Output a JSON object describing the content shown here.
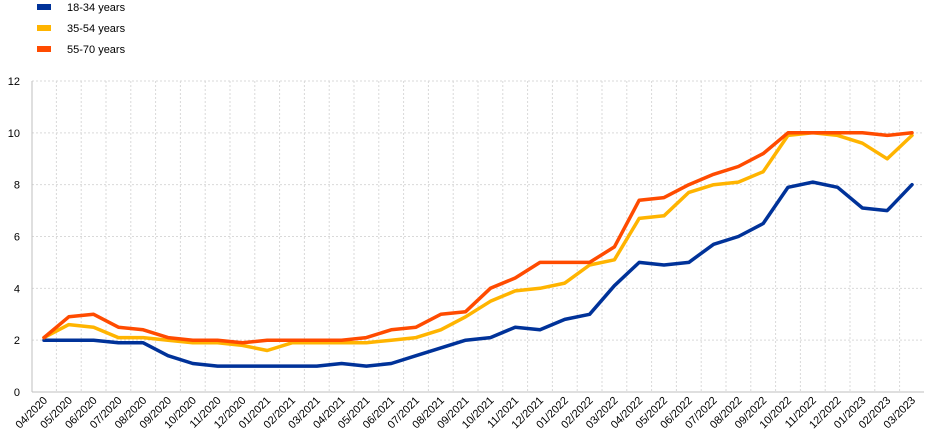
{
  "chart_data": {
    "type": "line",
    "categories": [
      "04/2020",
      "05/2020",
      "06/2020",
      "07/2020",
      "08/2020",
      "09/2020",
      "10/2020",
      "11/2020",
      "12/2020",
      "01/2021",
      "02/2021",
      "03/2021",
      "04/2021",
      "05/2021",
      "06/2021",
      "07/2021",
      "08/2021",
      "09/2021",
      "10/2021",
      "11/2021",
      "12/2021",
      "01/2022",
      "02/2022",
      "03/2022",
      "04/2022",
      "05/2022",
      "06/2022",
      "07/2022",
      "08/2022",
      "09/2022",
      "10/2022",
      "11/2022",
      "12/2022",
      "01/2023",
      "02/2023",
      "03/2023"
    ],
    "series": [
      {
        "name": "18-34 years",
        "color": "#003299",
        "values": [
          2.0,
          2.0,
          2.0,
          1.9,
          1.9,
          1.4,
          1.1,
          1.0,
          1.0,
          1.0,
          1.0,
          1.0,
          1.1,
          1.0,
          1.1,
          1.4,
          1.7,
          2.0,
          2.1,
          2.5,
          2.4,
          2.8,
          3.0,
          4.1,
          5.0,
          4.9,
          5.0,
          5.7,
          6.0,
          6.5,
          7.9,
          8.1,
          7.9,
          7.1,
          7.0,
          8.0
        ]
      },
      {
        "name": "35-54 years",
        "color": "#FFB400",
        "values": [
          2.1,
          2.6,
          2.5,
          2.1,
          2.1,
          2.0,
          1.9,
          1.9,
          1.8,
          1.6,
          1.9,
          1.9,
          1.9,
          1.9,
          2.0,
          2.1,
          2.4,
          2.9,
          3.5,
          3.9,
          4.0,
          4.2,
          4.9,
          5.1,
          6.7,
          6.8,
          7.7,
          8.0,
          8.1,
          8.5,
          9.9,
          10.0,
          9.9,
          9.6,
          9.0,
          9.9
        ]
      },
      {
        "name": "55-70 years",
        "color": "#FF4B00",
        "values": [
          2.1,
          2.9,
          3.0,
          2.5,
          2.4,
          2.1,
          2.0,
          2.0,
          1.9,
          2.0,
          2.0,
          2.0,
          2.0,
          2.1,
          2.4,
          2.5,
          3.0,
          3.1,
          4.0,
          4.4,
          5.0,
          5.0,
          5.0,
          5.6,
          7.4,
          7.5,
          8.0,
          8.4,
          8.7,
          9.2,
          10.0,
          10.0,
          10.0,
          10.0,
          9.9,
          10.0
        ]
      }
    ],
    "yticks": [
      0,
      2,
      4,
      6,
      8,
      10,
      12
    ],
    "ylim": [
      0,
      12
    ],
    "grid": true,
    "legend_position": "top-left"
  }
}
